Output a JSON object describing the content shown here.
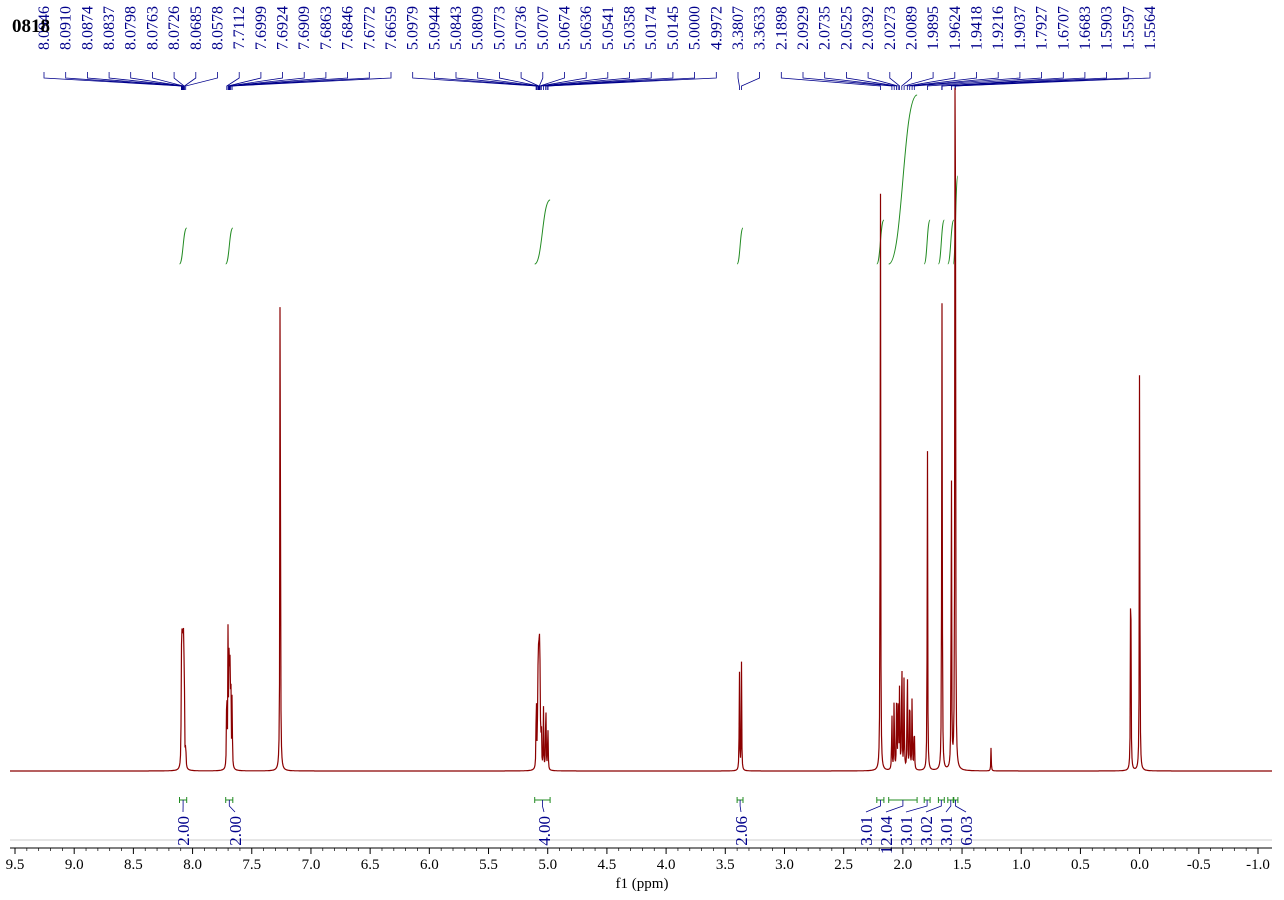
{
  "title": "0818",
  "chart_data": {
    "type": "line",
    "title": "0818",
    "xlabel": "f1 (ppm)",
    "ylabel": "",
    "xlim": [
      9.5,
      -1.0
    ],
    "x_reversed": true,
    "x_ticks": [
      9.5,
      9.0,
      8.5,
      8.0,
      7.5,
      7.0,
      6.5,
      6.0,
      5.5,
      5.0,
      4.5,
      4.0,
      3.5,
      3.0,
      2.5,
      2.0,
      1.5,
      1.0,
      0.5,
      0.0,
      -0.5,
      -1.0
    ],
    "x_tick_labels": [
      "9.5",
      "9.0",
      "8.5",
      "8.0",
      "7.5",
      "7.0",
      "6.5",
      "6.0",
      "5.5",
      "5.0",
      "4.5",
      "4.0",
      "3.5",
      "3.0",
      "2.5",
      "2.0",
      "1.5",
      "1.0",
      "0.5",
      "0.0",
      "-0.5",
      "-1.0"
    ],
    "colors": {
      "spectrum": "#8b0000",
      "peak_labels": "#00008b",
      "integrals": "#228b22"
    },
    "peak_groups": [
      {
        "labels": [
          "8.0946",
          "8.0910",
          "8.0874",
          "8.0837",
          "8.0798",
          "8.0763",
          "8.0726",
          "8.0685",
          "8.0578"
        ]
      },
      {
        "labels": [
          "7.7112",
          "7.6999",
          "7.6924",
          "7.6909",
          "7.6863",
          "7.6846",
          "7.6772",
          "7.6659"
        ]
      },
      {
        "labels": [
          "5.0979",
          "5.0944",
          "5.0843",
          "5.0809",
          "5.0773",
          "5.0736",
          "5.0707",
          "5.0674",
          "5.0636",
          "5.0541",
          "5.0358",
          "5.0174",
          "5.0145",
          "5.0000",
          "4.9972"
        ]
      },
      {
        "labels": [
          "3.3807",
          "3.3633"
        ]
      },
      {
        "labels": [
          "2.1898",
          "2.0929",
          "2.0735",
          "2.0525",
          "2.0392",
          "2.0273",
          "2.0089",
          "1.9895",
          "1.9624",
          "1.9418",
          "1.9216",
          "1.9037",
          "1.7927",
          "1.6707",
          "1.6683",
          "1.5903",
          "1.5597",
          "1.5564"
        ]
      }
    ],
    "peaks": [
      {
        "x": 8.0946,
        "y": 0.12
      },
      {
        "x": 8.091,
        "y": 0.14
      },
      {
        "x": 8.0874,
        "y": 0.13
      },
      {
        "x": 8.0837,
        "y": 0.12
      },
      {
        "x": 8.0798,
        "y": 0.13
      },
      {
        "x": 8.0763,
        "y": 0.12
      },
      {
        "x": 8.0726,
        "y": 0.1
      },
      {
        "x": 8.0685,
        "y": 0.08
      },
      {
        "x": 8.0578,
        "y": 0.04
      },
      {
        "x": 7.7112,
        "y": 0.16
      },
      {
        "x": 7.6999,
        "y": 0.22
      },
      {
        "x": 7.6924,
        "y": 0.08
      },
      {
        "x": 7.6909,
        "y": 0.08
      },
      {
        "x": 7.6863,
        "y": 0.1
      },
      {
        "x": 7.6846,
        "y": 0.1
      },
      {
        "x": 7.6772,
        "y": 0.18
      },
      {
        "x": 7.6659,
        "y": 0.12
      },
      {
        "x": 7.26,
        "y": 0.98
      },
      {
        "x": 5.0979,
        "y": 0.06
      },
      {
        "x": 5.0944,
        "y": 0.07
      },
      {
        "x": 5.0843,
        "y": 0.08
      },
      {
        "x": 5.0809,
        "y": 0.1
      },
      {
        "x": 5.0773,
        "y": 0.11
      },
      {
        "x": 5.0736,
        "y": 0.09
      },
      {
        "x": 5.0707,
        "y": 0.11
      },
      {
        "x": 5.0674,
        "y": 0.13
      },
      {
        "x": 5.0636,
        "y": 0.1
      },
      {
        "x": 5.0541,
        "y": 0.08
      },
      {
        "x": 5.0358,
        "y": 0.09
      },
      {
        "x": 5.0174,
        "y": 0.06
      },
      {
        "x": 5.0145,
        "y": 0.06
      },
      {
        "x": 5.0,
        "y": 0.04
      },
      {
        "x": 4.9972,
        "y": 0.04
      },
      {
        "x": 3.3807,
        "y": 0.16
      },
      {
        "x": 3.3633,
        "y": 0.16
      },
      {
        "x": 2.1898,
        "y": 1.0
      },
      {
        "x": 2.0929,
        "y": 0.1
      },
      {
        "x": 2.0735,
        "y": 0.13
      },
      {
        "x": 2.0525,
        "y": 0.12
      },
      {
        "x": 2.0392,
        "y": 0.15
      },
      {
        "x": 2.0273,
        "y": 0.14
      },
      {
        "x": 2.0089,
        "y": 0.22
      },
      {
        "x": 1.9895,
        "y": 0.15
      },
      {
        "x": 1.9624,
        "y": 0.2
      },
      {
        "x": 1.9418,
        "y": 0.16
      },
      {
        "x": 1.9216,
        "y": 0.13
      },
      {
        "x": 1.9037,
        "y": 0.09
      },
      {
        "x": 1.7927,
        "y": 0.54
      },
      {
        "x": 1.6707,
        "y": 0.47
      },
      {
        "x": 1.6683,
        "y": 0.42
      },
      {
        "x": 1.5903,
        "y": 0.54
      },
      {
        "x": 1.5597,
        "y": 0.86
      },
      {
        "x": 1.5564,
        "y": 0.84
      },
      {
        "x": 1.255,
        "y": 0.035
      },
      {
        "x": 0.075,
        "y": 0.44
      },
      {
        "x": 0.0,
        "y": 0.7
      }
    ],
    "integrals": [
      {
        "label": "2.00",
        "from": 8.11,
        "to": 8.05
      },
      {
        "label": "2.00",
        "from": 7.72,
        "to": 7.66
      },
      {
        "label": "4.00",
        "from": 5.11,
        "to": 4.98
      },
      {
        "label": "2.06",
        "from": 3.4,
        "to": 3.35
      },
      {
        "label": "3.01",
        "from": 2.22,
        "to": 2.16
      },
      {
        "label": "12.04",
        "from": 2.12,
        "to": 1.88
      },
      {
        "label": "3.01",
        "from": 1.82,
        "to": 1.77
      },
      {
        "label": "3.02",
        "from": 1.7,
        "to": 1.65
      },
      {
        "label": "3.01",
        "from": 1.62,
        "to": 1.57
      },
      {
        "label": "6.03",
        "from": 1.575,
        "to": 1.535
      }
    ]
  }
}
